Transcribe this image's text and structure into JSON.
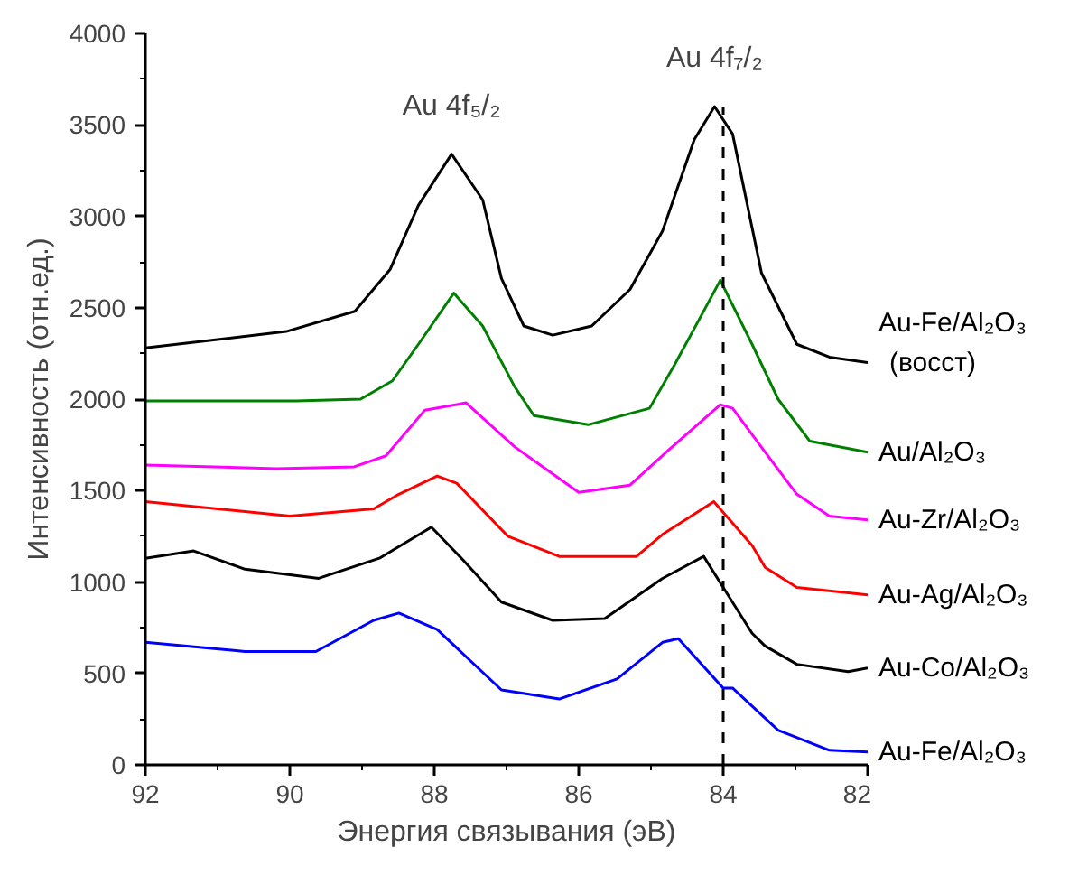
{
  "chart_data": {
    "type": "line",
    "xlabel": "Энергия связывания (эВ)",
    "ylabel": "Интенсивность (отн.ед.)",
    "xlim": [
      92,
      82
    ],
    "xticks": [
      92,
      90,
      88,
      86,
      84,
      82,
      {
        "value": 91,
        "label": null
      },
      {
        "value": 89,
        "label": null
      },
      {
        "value": 87,
        "label": null
      },
      {
        "value": 85,
        "label": null
      },
      {
        "value": 83,
        "label": null
      }
    ],
    "ylim": [
      0,
      4000
    ],
    "yticks": [
      0,
      500,
      1000,
      1500,
      2000,
      2500,
      3000,
      3500,
      4000,
      {
        "value": 250,
        "label": null
      },
      {
        "value": 750,
        "label": null
      },
      {
        "value": 1250,
        "label": null
      },
      {
        "value": 1750,
        "label": null
      },
      {
        "value": 2250,
        "label": null
      },
      {
        "value": 2750,
        "label": null
      },
      {
        "value": 3250,
        "label": null
      },
      {
        "value": 3750,
        "label": null
      }
    ],
    "grid": false,
    "marker": "none",
    "line_style": "solid",
    "series": [
      {
        "name": "Au-Fe/Al₂O₃\n(восст)",
        "color": "#000000",
        "x": [
          92.0,
          90.05,
          89.1,
          88.61,
          88.22,
          87.76,
          87.33,
          87.07,
          86.76,
          86.36,
          85.82,
          85.29,
          84.84,
          84.4,
          84.12,
          83.87,
          83.47,
          82.98,
          82.53,
          82.0
        ],
        "values": [
          2280,
          2370,
          2480,
          2710,
          3060,
          3340,
          3090,
          2660,
          2400,
          2350,
          2400,
          2600,
          2920,
          3420,
          3600,
          3450,
          2690,
          2300,
          2230,
          2200
        ]
      },
      {
        "name": "Au/Al₂O₃",
        "color": "#008000",
        "x": [
          92.0,
          89.91,
          89.02,
          88.58,
          88.22,
          87.73,
          87.33,
          86.89,
          86.62,
          85.87,
          85.02,
          84.67,
          84.04,
          83.6,
          83.24,
          82.8,
          82.0
        ],
        "values": [
          1990,
          1990,
          2000,
          2100,
          2300,
          2580,
          2400,
          2070,
          1910,
          1860,
          1950,
          2190,
          2650,
          2300,
          2000,
          1770,
          1710
        ]
      },
      {
        "name": "Au-Zr/Al₂O₃",
        "color": "#ff00ff",
        "x": [
          92.0,
          90.18,
          89.11,
          88.67,
          88.13,
          87.56,
          86.89,
          86.0,
          85.29,
          84.76,
          84.04,
          83.87,
          83.42,
          82.98,
          82.53,
          82.0
        ],
        "values": [
          1640,
          1620,
          1630,
          1690,
          1940,
          1980,
          1740,
          1490,
          1530,
          1720,
          1970,
          1950,
          1710,
          1480,
          1360,
          1340
        ]
      },
      {
        "name": "Au-Ag/Al₂O₃",
        "color": "#ff0000",
        "x": [
          92.0,
          90.0,
          88.84,
          88.49,
          87.96,
          87.69,
          86.98,
          86.27,
          85.2,
          84.84,
          84.13,
          83.6,
          83.42,
          82.98,
          82.0
        ],
        "values": [
          1440,
          1360,
          1400,
          1480,
          1580,
          1540,
          1250,
          1140,
          1140,
          1260,
          1440,
          1200,
          1080,
          970,
          930
        ]
      },
      {
        "name": "Au-Co/Al₂O₃",
        "color": "#000000",
        "x": [
          92.0,
          91.33,
          90.62,
          89.6,
          88.76,
          88.04,
          87.6,
          87.07,
          86.36,
          85.64,
          84.84,
          84.27,
          84.0,
          83.6,
          83.42,
          82.98,
          82.27,
          82.0
        ],
        "values": [
          1130,
          1170,
          1070,
          1020,
          1130,
          1300,
          1120,
          890,
          790,
          800,
          1020,
          1140,
          970,
          720,
          650,
          550,
          510,
          530
        ]
      },
      {
        "name": "Au-Fe/Al₂O₃",
        "color": "#0000ff",
        "x": [
          92.0,
          90.62,
          89.64,
          88.84,
          88.49,
          87.96,
          87.07,
          86.27,
          85.47,
          84.84,
          84.62,
          84.0,
          83.87,
          83.24,
          82.53,
          82.0
        ],
        "values": [
          670,
          620,
          620,
          790,
          830,
          740,
          410,
          360,
          470,
          670,
          690,
          420,
          420,
          190,
          80,
          70
        ]
      }
    ],
    "ref_lines": [
      {
        "axis": "x",
        "value": 84,
        "color": "#000000",
        "line_style": "dashed"
      }
    ],
    "annotations": [
      {
        "text": "Au 4f₅/₂",
        "x": 87.76,
        "y": 3340
      },
      {
        "text": "Au 4f₇/₂",
        "x": 84.12,
        "y": 3600
      }
    ]
  }
}
